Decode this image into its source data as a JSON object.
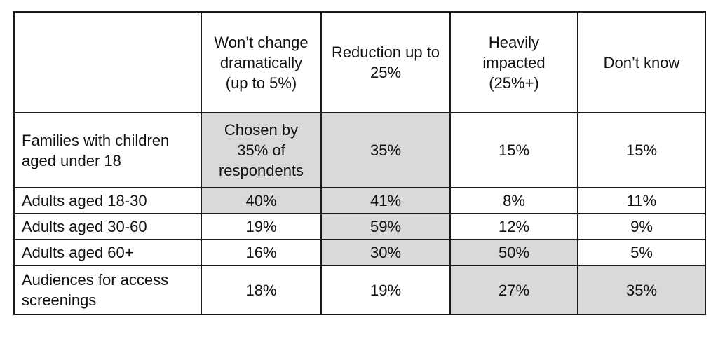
{
  "columns": [
    "",
    "Won’t change dramatically (up to 5%)",
    "Reduction up to 25%",
    "Heavily impacted (25%+)",
    "Don’t know"
  ],
  "rows": [
    {
      "label": "Families with children aged under 18",
      "cells": [
        "Chosen by 35% of respondents",
        "35%",
        "15%",
        "15%"
      ]
    },
    {
      "label": "Adults aged 18-30",
      "cells": [
        "40%",
        "41%",
        "8%",
        "11%"
      ]
    },
    {
      "label": "Adults aged 30-60",
      "cells": [
        "19%",
        "59%",
        "12%",
        "9%"
      ]
    },
    {
      "label": "Adults aged 60+",
      "cells": [
        "16%",
        "30%",
        "50%",
        "5%"
      ]
    },
    {
      "label": "Audiences for access screenings",
      "cells": [
        "18%",
        "19%",
        "27%",
        "35%"
      ]
    }
  ],
  "highlighted_cells": [
    [
      0,
      0
    ],
    [
      0,
      1
    ],
    [
      1,
      0
    ],
    [
      1,
      1
    ],
    [
      2,
      1
    ],
    [
      3,
      1
    ],
    [
      3,
      2
    ],
    [
      4,
      2
    ],
    [
      4,
      3
    ]
  ],
  "colors": {
    "highlight": "#d9d9d9",
    "border": "#1a1a1a",
    "background": "#ffffff"
  }
}
